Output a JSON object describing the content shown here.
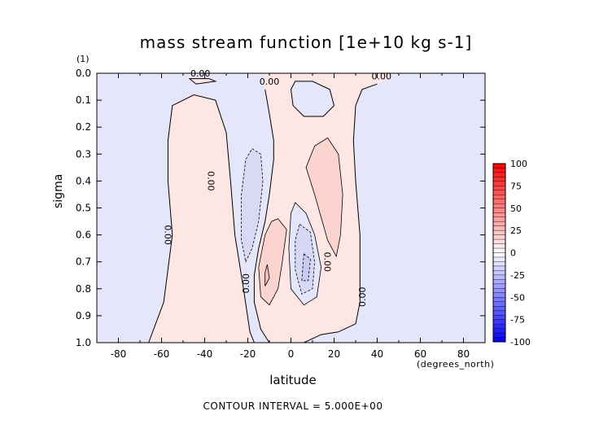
{
  "chart_data": {
    "type": "contour",
    "title": "mass stream function [1e+10 kg s-1]",
    "xlabel": "latitude",
    "ylabel": "sigma",
    "y_units": "(1)",
    "x_units": "(degrees_north)",
    "xlim": [
      -90,
      90
    ],
    "ylim": [
      0.0,
      1.0
    ],
    "y_inverted": true,
    "x_ticks": [
      -80,
      -60,
      -40,
      -20,
      0,
      20,
      40,
      60,
      80
    ],
    "y_ticks": [
      0.0,
      0.1,
      0.2,
      0.3,
      0.4,
      0.5,
      0.6,
      0.7,
      0.8,
      0.9,
      1.0
    ],
    "y_tick_labels": [
      "0.0",
      "0.1",
      "0.2",
      "0.3",
      "0.4",
      "0.5",
      "0.6",
      "0.7",
      "0.8",
      "0.9",
      "1.0"
    ],
    "contour_labels": [
      "0.00",
      "0.00",
      "0.00",
      "0.00",
      "0.00",
      "0.00",
      "0.00",
      "0.00"
    ],
    "colorbar": {
      "ticks": [
        100,
        75,
        50,
        25,
        0,
        -25,
        -50,
        -75,
        -100
      ],
      "tick_labels": [
        "100",
        "75",
        "50",
        "25",
        "0",
        "-25",
        "-50",
        "-75",
        "-100"
      ],
      "colors": {
        "positive_max": "#ff0000",
        "positive_light": "#fde7e5",
        "zero": "#ffffff",
        "negative_light": "#e6e6fb",
        "negative_max": "#0000ff"
      }
    },
    "footer": "CONTOUR INTERVAL = 5.000E+00"
  }
}
